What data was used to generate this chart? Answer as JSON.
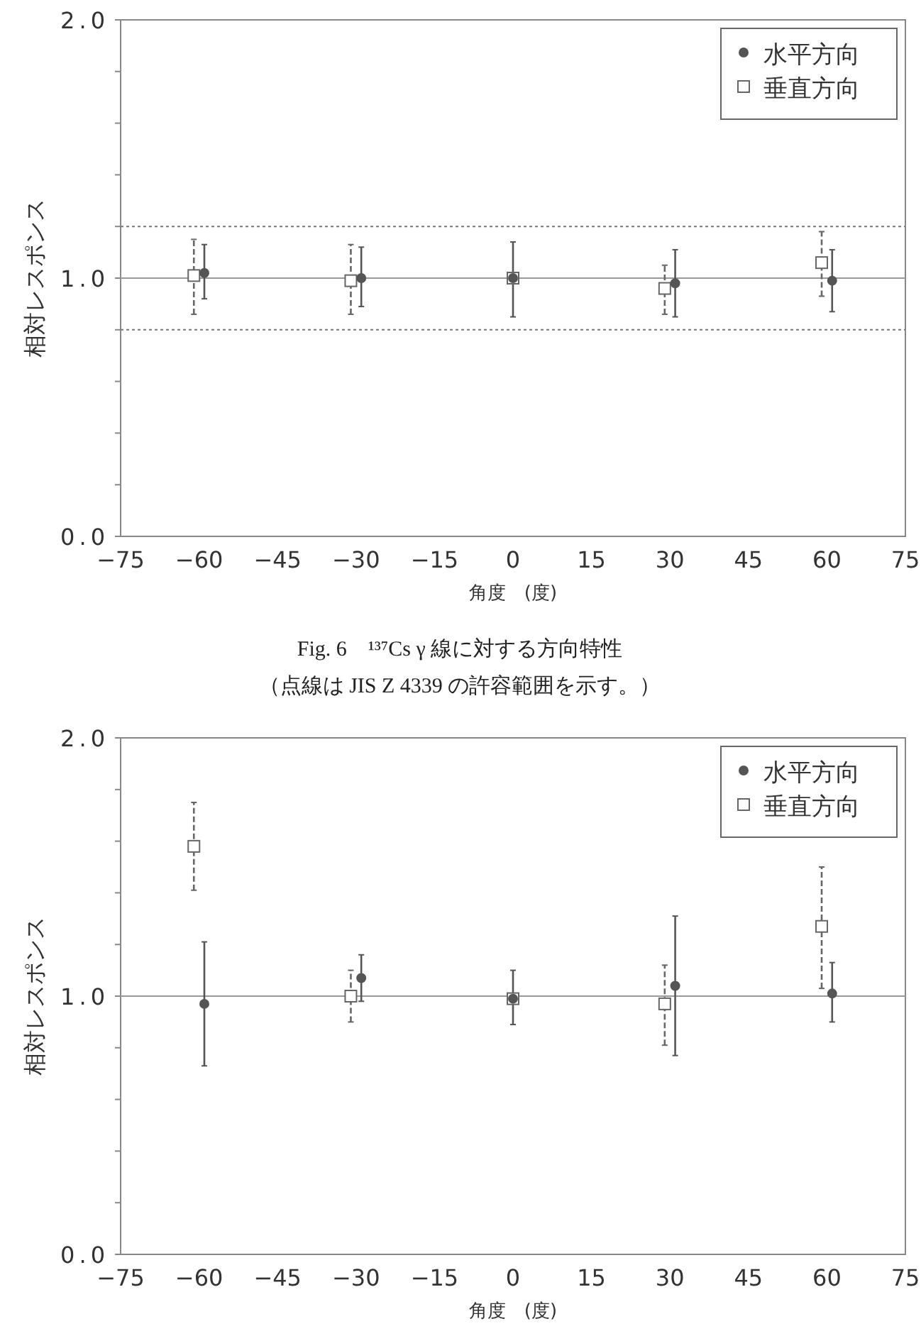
{
  "chart_data": [
    {
      "type": "scatter",
      "xlabel": "角度　(度)",
      "ylabel": "相対レスポンス",
      "xlim": [
        -75,
        75
      ],
      "xticks": [
        {
          "value": -75,
          "label": "−75"
        },
        {
          "value": -60,
          "label": "−60"
        },
        {
          "value": -45,
          "label": "−45"
        },
        {
          "value": -30,
          "label": "−30"
        },
        {
          "value": -15,
          "label": "−15"
        },
        0,
        15,
        30,
        45,
        60,
        75
      ],
      "ylim": [
        0,
        2
      ],
      "yticks": [
        {
          "value": 0,
          "label": "0.0"
        },
        {
          "value": 0.2,
          "label": null
        },
        {
          "value": 0.4,
          "label": null
        },
        {
          "value": 0.6,
          "label": null
        },
        {
          "value": 0.8,
          "label": null
        },
        {
          "value": 1,
          "label": "1.0"
        },
        {
          "value": 1.2,
          "label": null
        },
        {
          "value": 1.4,
          "label": null
        },
        {
          "value": 1.6,
          "label": null
        },
        {
          "value": 1.8,
          "label": null
        },
        {
          "value": 2,
          "label": "2.0"
        }
      ],
      "legend": "top right",
      "grid": false,
      "ref_lines": [
        {
          "axis": "y",
          "value": 1.0,
          "color": "#999999",
          "line_style": "solid"
        },
        {
          "axis": "y",
          "value": 1.2,
          "color": "#777777",
          "line_style": "dotted"
        },
        {
          "axis": "y",
          "value": 0.8,
          "color": "#777777",
          "line_style": "dotted"
        }
      ],
      "series": [
        {
          "name": "水平方向",
          "color": "#555555",
          "marker": "circle",
          "line_style": "solid",
          "x": [
            -59,
            -29,
            0,
            31,
            61
          ],
          "values": [
            1.02,
            1.0,
            1.0,
            0.98,
            0.99
          ],
          "errors": [
            [
              0.92,
              1.13
            ],
            [
              0.89,
              1.12
            ],
            [
              0.85,
              1.14
            ],
            [
              0.85,
              1.11
            ],
            [
              0.87,
              1.11
            ]
          ]
        },
        {
          "name": "垂直方向",
          "color": "#666666",
          "marker": "square",
          "line_style": "dashed",
          "x": [
            -61,
            -31,
            0,
            29,
            59
          ],
          "values": [
            1.01,
            0.99,
            1.0,
            0.96,
            1.06
          ],
          "errors": [
            [
              0.86,
              1.15
            ],
            [
              0.86,
              1.13
            ],
            null,
            [
              0.86,
              1.05
            ],
            [
              0.93,
              1.18
            ]
          ]
        }
      ],
      "annotations": [
        "Fig. 6　¹³⁷Cs γ 線に対する方向特性",
        "（点線は JIS Z 4339 の許容範囲を示す。）"
      ]
    },
    {
      "type": "scatter",
      "xlabel": "角度　(度)",
      "ylabel": "相対レスポンス",
      "xlim": [
        -75,
        75
      ],
      "xticks": [
        {
          "value": -75,
          "label": "−75"
        },
        {
          "value": -60,
          "label": "−60"
        },
        {
          "value": -45,
          "label": "−45"
        },
        {
          "value": -30,
          "label": "−30"
        },
        {
          "value": -15,
          "label": "−15"
        },
        0,
        15,
        30,
        45,
        60,
        75
      ],
      "ylim": [
        0,
        2
      ],
      "yticks": [
        {
          "value": 0,
          "label": "0.0"
        },
        {
          "value": 0.2,
          "label": null
        },
        {
          "value": 0.4,
          "label": null
        },
        {
          "value": 0.6,
          "label": null
        },
        {
          "value": 0.8,
          "label": null
        },
        {
          "value": 1,
          "label": "1.0"
        },
        {
          "value": 1.2,
          "label": null
        },
        {
          "value": 1.4,
          "label": null
        },
        {
          "value": 1.6,
          "label": null
        },
        {
          "value": 1.8,
          "label": null
        },
        {
          "value": 2,
          "label": "2.0"
        }
      ],
      "legend": "top right",
      "grid": false,
      "ref_lines": [
        {
          "axis": "y",
          "value": 1.0,
          "color": "#999999",
          "line_style": "solid"
        }
      ],
      "series": [
        {
          "name": "水平方向",
          "color": "#555555",
          "marker": "circle",
          "line_style": "solid",
          "x": [
            -59,
            -29,
            0,
            31,
            61
          ],
          "values": [
            0.97,
            1.07,
            0.99,
            1.04,
            1.01
          ],
          "errors": [
            [
              0.73,
              1.21
            ],
            [
              0.98,
              1.16
            ],
            [
              0.89,
              1.1
            ],
            [
              0.77,
              1.31
            ],
            [
              0.9,
              1.13
            ]
          ]
        },
        {
          "name": "垂直方向",
          "color": "#666666",
          "marker": "square",
          "line_style": "dashed",
          "x": [
            -61,
            -31,
            0,
            29,
            59
          ],
          "values": [
            1.58,
            1.0,
            0.99,
            0.97,
            1.27
          ],
          "errors": [
            [
              1.41,
              1.75
            ],
            [
              0.9,
              1.1
            ],
            null,
            [
              0.81,
              1.12
            ],
            [
              1.03,
              1.5
            ]
          ]
        }
      ]
    }
  ]
}
